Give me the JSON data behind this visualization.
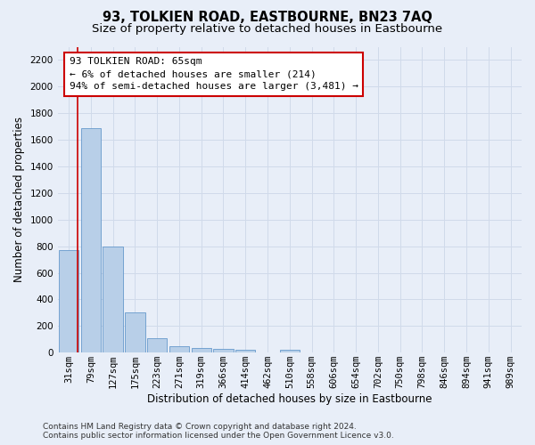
{
  "title": "93, TOLKIEN ROAD, EASTBOURNE, BN23 7AQ",
  "subtitle": "Size of property relative to detached houses in Eastbourne",
  "xlabel": "Distribution of detached houses by size in Eastbourne",
  "ylabel": "Number of detached properties",
  "categories": [
    "31sqm",
    "79sqm",
    "127sqm",
    "175sqm",
    "223sqm",
    "271sqm",
    "319sqm",
    "366sqm",
    "414sqm",
    "462sqm",
    "510sqm",
    "558sqm",
    "606sqm",
    "654sqm",
    "702sqm",
    "750sqm",
    "798sqm",
    "846sqm",
    "894sqm",
    "941sqm",
    "989sqm"
  ],
  "values": [
    770,
    1690,
    800,
    300,
    110,
    45,
    33,
    27,
    22,
    0,
    22,
    0,
    0,
    0,
    0,
    0,
    0,
    0,
    0,
    0,
    0
  ],
  "bar_color": "#b8cfe8",
  "bar_edge_color": "#6699cc",
  "grid_color": "#d0daea",
  "background_color": "#e8eef8",
  "annotation_text": "93 TOLKIEN ROAD: 65sqm\n← 6% of detached houses are smaller (214)\n94% of semi-detached houses are larger (3,481) →",
  "annotation_box_facecolor": "#ffffff",
  "annotation_box_edgecolor": "#cc0000",
  "red_line_x": 0.42,
  "ylim": [
    0,
    2300
  ],
  "yticks": [
    0,
    200,
    400,
    600,
    800,
    1000,
    1200,
    1400,
    1600,
    1800,
    2000,
    2200
  ],
  "title_fontsize": 10.5,
  "subtitle_fontsize": 9.5,
  "xlabel_fontsize": 8.5,
  "ylabel_fontsize": 8.5,
  "tick_fontsize": 7.5,
  "annotation_fontsize": 8,
  "footnote_fontsize": 6.5,
  "footnote": "Contains HM Land Registry data © Crown copyright and database right 2024.\nContains public sector information licensed under the Open Government Licence v3.0."
}
